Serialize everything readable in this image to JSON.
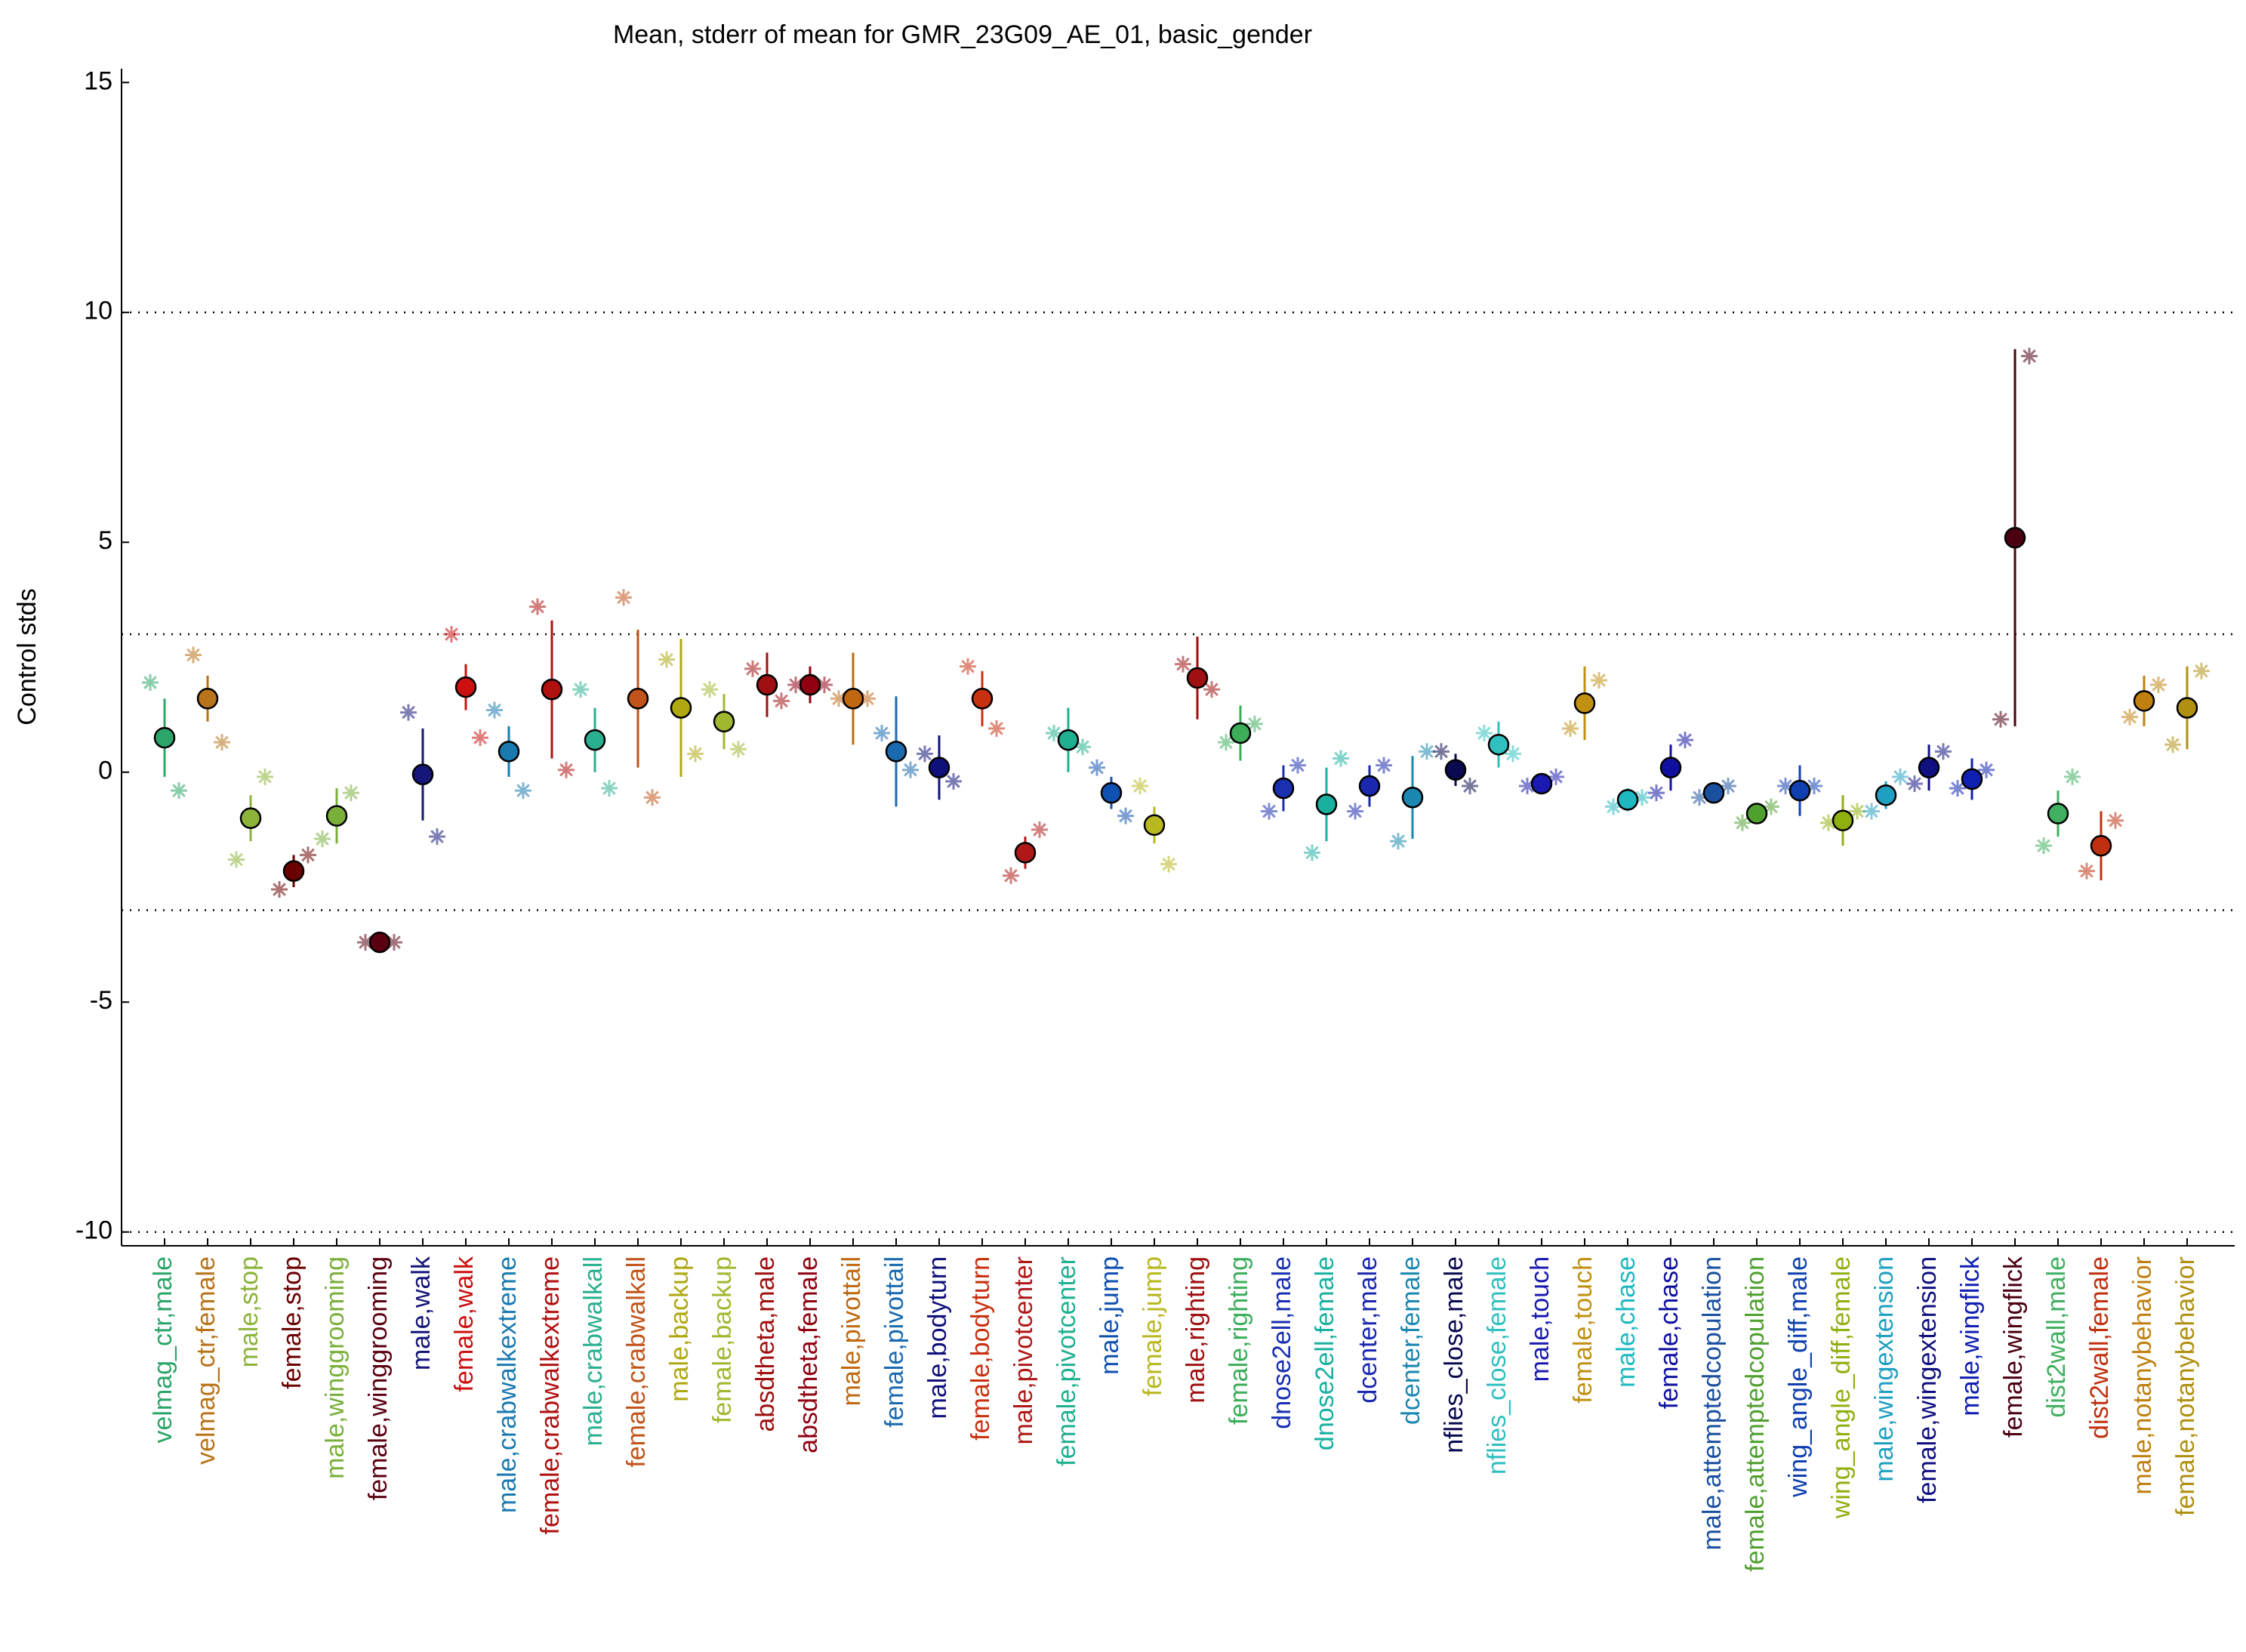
{
  "chart_data": {
    "type": "errorpoint",
    "title": "Mean, stderr of mean for GMR_23G09_AE_01, basic_gender",
    "y_label": "Control stds",
    "ylim": [
      -10.3,
      15.3
    ],
    "yticks": [
      -10,
      -5,
      0,
      5,
      10,
      15
    ],
    "reference_lines": [
      10,
      3,
      -3,
      -10
    ],
    "categories": [
      "velmag_ctr,male",
      "velmag_ctr,female",
      "male,stop",
      "female,stop",
      "male,winggrooming",
      "female,winggrooming",
      "male,walk",
      "female,walk",
      "male,crabwalkextreme",
      "female,crabwalkextreme",
      "male,crabwalkall",
      "female,crabwalkall",
      "male,backup",
      "female,backup",
      "absdtheta,male",
      "absdtheta,female",
      "male,pivottail",
      "female,pivottail",
      "male,bodyturn",
      "female,bodyturn",
      "male,pivotcenter",
      "female,pivotcenter",
      "male,jump",
      "female,jump",
      "male,righting",
      "female,righting",
      "dnose2ell,male",
      "dnose2ell,female",
      "dcenter,male",
      "dcenter,female",
      "nflies_close,male",
      "nflies_close,female",
      "male,touch",
      "female,touch",
      "male,chase",
      "female,chase",
      "male,attemptedcopulation",
      "female,attemptedcopulation",
      "wing_angle_diff,male",
      "wing_angle_diff,female",
      "male,wingextension",
      "female,wingextension",
      "male,wingflick",
      "female,wingflick",
      "dist2wall,male",
      "dist2wall,female",
      "male,notanybehavior",
      "female,notanybehavior"
    ],
    "colors": [
      "#2ca56a",
      "#b8741a",
      "#8db33a",
      "#6b0000",
      "#7ab03a",
      "#5a0010",
      "#15157a",
      "#cc1010",
      "#1a7ab0",
      "#b01010",
      "#2ab090",
      "#c0541a",
      "#b0a810",
      "#a0b830",
      "#a01010",
      "#900010",
      "#c06810",
      "#1a6ab0",
      "#10107a",
      "#c83010",
      "#b01818",
      "#20b090",
      "#1050b0",
      "#b8b820",
      "#a01010",
      "#3cae5a",
      "#1a30b0",
      "#1ab0a0",
      "#1a28b0",
      "#1a88b0",
      "#0a0a50",
      "#30c0c0",
      "#1a1ab0",
      "#c09010",
      "#20b8c0",
      "#1010a0",
      "#1a50a0",
      "#50a030",
      "#1040b0",
      "#90b010",
      "#20a0c0",
      "#101080",
      "#1020b0",
      "#4a0010",
      "#40b060",
      "#c03010",
      "#c08010",
      "#b09010"
    ],
    "means": [
      0.75,
      1.6,
      -1.0,
      -2.15,
      -0.95,
      -3.7,
      -0.05,
      1.85,
      0.45,
      1.8,
      0.7,
      1.6,
      1.4,
      1.1,
      1.9,
      1.9,
      1.6,
      0.45,
      0.1,
      1.6,
      -1.75,
      0.7,
      -0.45,
      -1.15,
      2.05,
      0.85,
      -0.35,
      -0.7,
      -0.3,
      -0.55,
      0.05,
      0.6,
      -0.25,
      1.5,
      -0.6,
      0.1,
      -0.45,
      -0.9,
      -0.4,
      -1.05,
      -0.5,
      0.1,
      -0.15,
      5.1,
      -0.9,
      -1.6,
      1.55,
      1.4
    ],
    "errors": [
      0.85,
      0.5,
      0.5,
      0.35,
      0.6,
      0.2,
      1.0,
      0.5,
      0.55,
      1.5,
      0.7,
      1.5,
      1.5,
      0.6,
      0.7,
      0.4,
      1.0,
      1.2,
      0.7,
      0.6,
      0.35,
      0.7,
      0.35,
      0.4,
      0.9,
      0.6,
      0.5,
      0.8,
      0.45,
      0.9,
      0.35,
      0.5,
      0.2,
      0.8,
      0.25,
      0.5,
      0.2,
      0.15,
      0.55,
      0.55,
      0.3,
      0.5,
      0.45,
      4.1,
      0.5,
      0.75,
      0.55,
      0.9
    ],
    "left_points": [
      1.95,
      2.55,
      -1.9,
      -2.55,
      -1.45,
      -3.7,
      1.3,
      3.0,
      1.35,
      3.6,
      1.8,
      3.8,
      2.45,
      1.8,
      2.25,
      1.9,
      1.6,
      0.85,
      0.4,
      2.3,
      -2.25,
      0.85,
      0.1,
      -0.3,
      2.35,
      0.65,
      -0.85,
      -1.75,
      -0.85,
      -1.5,
      0.45,
      0.85,
      -0.3,
      0.95,
      -0.75,
      -0.45,
      -0.55,
      -1.1,
      -0.3,
      -1.1,
      -0.85,
      -0.25,
      -0.35,
      1.15,
      -1.6,
      -2.15,
      1.2,
      0.6
    ],
    "right_points": [
      -0.4,
      0.65,
      -0.1,
      -1.8,
      -0.45,
      -3.7,
      -1.4,
      0.75,
      -0.4,
      0.05,
      -0.35,
      -0.55,
      0.4,
      0.5,
      1.55,
      1.9,
      1.6,
      0.05,
      -0.2,
      0.95,
      -1.25,
      0.55,
      -0.95,
      -2.0,
      1.8,
      1.05,
      0.15,
      0.3,
      0.15,
      0.45,
      -0.3,
      0.4,
      -0.1,
      2.0,
      -0.55,
      0.7,
      -0.3,
      -0.75,
      -0.3,
      -0.85,
      -0.1,
      0.45,
      0.05,
      9.05,
      -0.1,
      -1.05,
      1.9,
      2.2
    ]
  }
}
